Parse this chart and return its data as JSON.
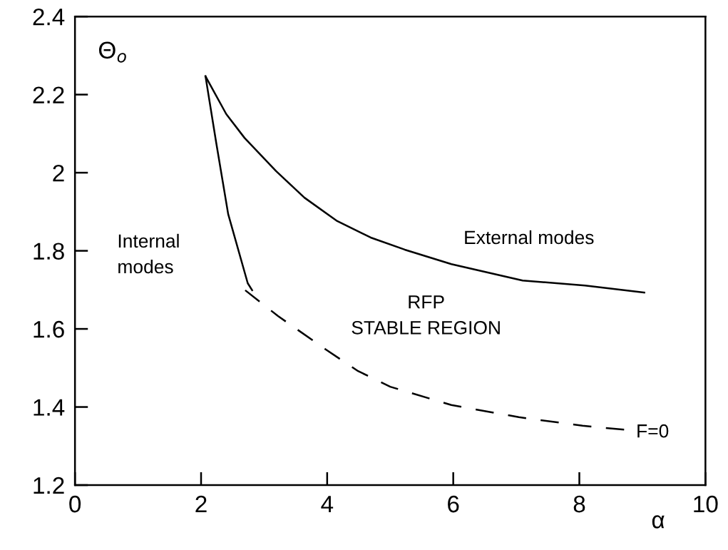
{
  "chart_data": {
    "type": "line",
    "xlabel": "α",
    "ylabel": "Θ$_{o}$",
    "xlim": [
      0,
      10
    ],
    "ylim": [
      1.2,
      2.4
    ],
    "xticks": [
      0,
      2,
      4,
      6,
      8,
      10
    ],
    "yticks": [
      1.2,
      1.4,
      1.6,
      1.8,
      2,
      2.2,
      2.4
    ],
    "grid": false,
    "marker": "none",
    "series": [
      {
        "color": "#000000",
        "line_style": "solid",
        "x": [
          2.07,
          2.24,
          2.43,
          2.74,
          2.81
        ],
        "values": [
          2.247,
          2.077,
          1.894,
          1.717,
          1.699
        ]
      },
      {
        "color": "#000000",
        "line_style": "solid",
        "x": [
          2.07,
          2.4,
          2.69,
          3.19,
          3.64,
          4.16,
          4.69,
          5.23,
          5.97,
          7.1,
          8.09,
          9.03
        ],
        "values": [
          2.247,
          2.15,
          2.089,
          2.004,
          1.936,
          1.876,
          1.834,
          1.803,
          1.766,
          1.724,
          1.711,
          1.693
        ]
      },
      {
        "color": "#000000",
        "line_style": "dashed",
        "x": [
          2.7,
          3.22,
          3.98,
          4.49,
          5.0,
          5.97,
          7.04,
          8.05,
          8.71
        ],
        "values": [
          1.699,
          1.633,
          1.547,
          1.492,
          1.452,
          1.405,
          1.374,
          1.352,
          1.342
        ]
      }
    ],
    "annotations": [
      "Internal\nmodes",
      "External modes",
      "RFP\nSTABLE REGION",
      "F=0"
    ]
  }
}
